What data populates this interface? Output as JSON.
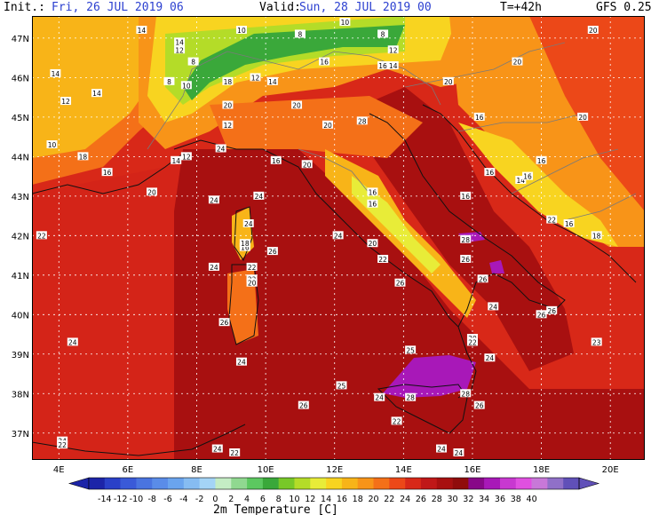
{
  "header": {
    "init_label": "Init.:",
    "init_value": "Fri, 26 JUL 2019 06",
    "valid_label": "Valid:",
    "valid_value": "Sun, 28 JUL 2019 00",
    "lead_time": "T=+42h",
    "model": "GFS 0.25"
  },
  "axes": {
    "lat_labels": [
      "47N",
      "46N",
      "45N",
      "44N",
      "43N",
      "42N",
      "41N",
      "40N",
      "39N",
      "38N",
      "37N"
    ],
    "lat_values": [
      47,
      46,
      45,
      44,
      43,
      42,
      41,
      40,
      39,
      38,
      37
    ],
    "lon_labels": [
      "4E",
      "6E",
      "8E",
      "10E",
      "12E",
      "14E",
      "16E",
      "18E",
      "20E"
    ],
    "lon_values": [
      4,
      6,
      8,
      10,
      12,
      14,
      16,
      18,
      20
    ]
  },
  "colorbar": {
    "title": "2m Temperature [C]",
    "tick_labels": [
      "-14",
      "-12",
      "-10",
      "-8",
      "-6",
      "-4",
      "-2",
      "0",
      "2",
      "4",
      "6",
      "8",
      "10",
      "12",
      "14",
      "16",
      "18",
      "20",
      "22",
      "24",
      "26",
      "28",
      "30",
      "32",
      "34",
      "36",
      "38",
      "40"
    ],
    "colors": [
      "#1c24a8",
      "#2a40c8",
      "#3a5ad8",
      "#4a74e0",
      "#5a8ce8",
      "#6aa4ee",
      "#86bcf2",
      "#a4d4f6",
      "#c4ecc4",
      "#90d890",
      "#5cc860",
      "#3aa83a",
      "#78c828",
      "#b4dc28",
      "#e8ec38",
      "#f8d420",
      "#f8b418",
      "#f89418",
      "#f47018",
      "#ec4818",
      "#d82818",
      "#c01818",
      "#a81010",
      "#900c0c",
      "#880888",
      "#a818b8",
      "#c838d0",
      "#e050e0",
      "#c878d8",
      "#9070c8",
      "#6050b8"
    ]
  },
  "map_labels": [
    {
      "text": "14",
      "lon": 6.4,
      "lat": 47.2
    },
    {
      "text": "10",
      "lon": 9.3,
      "lat": 47.2
    },
    {
      "text": "8",
      "lon": 11.0,
      "lat": 47.1
    },
    {
      "text": "10",
      "lon": 12.3,
      "lat": 47.4
    },
    {
      "text": "8",
      "lon": 13.4,
      "lat": 47.1
    },
    {
      "text": "20",
      "lon": 19.5,
      "lat": 47.2
    },
    {
      "text": "14",
      "lon": 7.5,
      "lat": 46.9
    },
    {
      "text": "12",
      "lon": 7.5,
      "lat": 46.7
    },
    {
      "text": "12",
      "lon": 13.7,
      "lat": 46.7
    },
    {
      "text": "14",
      "lon": 3.9,
      "lat": 46.1
    },
    {
      "text": "8",
      "lon": 7.9,
      "lat": 46.4
    },
    {
      "text": "16",
      "lon": 11.7,
      "lat": 46.4
    },
    {
      "text": "16",
      "lon": 13.4,
      "lat": 46.3
    },
    {
      "text": "14",
      "lon": 13.7,
      "lat": 46.3
    },
    {
      "text": "20",
      "lon": 17.3,
      "lat": 46.4
    },
    {
      "text": "8",
      "lon": 7.2,
      "lat": 45.9
    },
    {
      "text": "10",
      "lon": 7.7,
      "lat": 45.8
    },
    {
      "text": "18",
      "lon": 8.9,
      "lat": 45.9
    },
    {
      "text": "12",
      "lon": 9.7,
      "lat": 46.0
    },
    {
      "text": "14",
      "lon": 10.2,
      "lat": 45.9
    },
    {
      "text": "20",
      "lon": 15.3,
      "lat": 45.9
    },
    {
      "text": "14",
      "lon": 5.1,
      "lat": 45.6
    },
    {
      "text": "12",
      "lon": 4.2,
      "lat": 45.4
    },
    {
      "text": "20",
      "lon": 8.9,
      "lat": 45.3
    },
    {
      "text": "20",
      "lon": 10.9,
      "lat": 45.3
    },
    {
      "text": "20",
      "lon": 19.2,
      "lat": 45.0
    },
    {
      "text": "16",
      "lon": 16.2,
      "lat": 45.0
    },
    {
      "text": "12",
      "lon": 8.9,
      "lat": 44.8
    },
    {
      "text": "20",
      "lon": 11.8,
      "lat": 44.8
    },
    {
      "text": "28",
      "lon": 12.8,
      "lat": 44.9
    },
    {
      "text": "10",
      "lon": 3.8,
      "lat": 44.3
    },
    {
      "text": "18",
      "lon": 4.7,
      "lat": 44.0
    },
    {
      "text": "14",
      "lon": 7.4,
      "lat": 43.9
    },
    {
      "text": "12",
      "lon": 7.7,
      "lat": 44.0
    },
    {
      "text": "24",
      "lon": 8.7,
      "lat": 44.2
    },
    {
      "text": "16",
      "lon": 10.3,
      "lat": 43.9
    },
    {
      "text": "20",
      "lon": 11.2,
      "lat": 43.8
    },
    {
      "text": "16",
      "lon": 18.0,
      "lat": 43.9
    },
    {
      "text": "16",
      "lon": 16.5,
      "lat": 43.6
    },
    {
      "text": "14",
      "lon": 17.4,
      "lat": 43.4
    },
    {
      "text": "16",
      "lon": 17.6,
      "lat": 43.5
    },
    {
      "text": "16",
      "lon": 5.4,
      "lat": 43.6
    },
    {
      "text": "20",
      "lon": 6.7,
      "lat": 43.1
    },
    {
      "text": "24",
      "lon": 8.5,
      "lat": 42.9
    },
    {
      "text": "24",
      "lon": 9.8,
      "lat": 43.0
    },
    {
      "text": "16",
      "lon": 13.1,
      "lat": 43.1
    },
    {
      "text": "16",
      "lon": 15.8,
      "lat": 43.0
    },
    {
      "text": "16",
      "lon": 13.1,
      "lat": 42.8
    },
    {
      "text": "22",
      "lon": 18.3,
      "lat": 42.4
    },
    {
      "text": "16",
      "lon": 18.8,
      "lat": 42.3
    },
    {
      "text": "18",
      "lon": 19.6,
      "lat": 42.0
    },
    {
      "text": "22",
      "lon": 3.5,
      "lat": 42.0
    },
    {
      "text": "24",
      "lon": 9.5,
      "lat": 42.3
    },
    {
      "text": "24",
      "lon": 12.1,
      "lat": 42.0
    },
    {
      "text": "28",
      "lon": 15.8,
      "lat": 41.9
    },
    {
      "text": "16",
      "lon": 9.4,
      "lat": 41.7
    },
    {
      "text": "18",
      "lon": 9.4,
      "lat": 41.8
    },
    {
      "text": "20",
      "lon": 13.1,
      "lat": 41.8
    },
    {
      "text": "26",
      "lon": 10.2,
      "lat": 41.6
    },
    {
      "text": "22",
      "lon": 13.4,
      "lat": 41.4
    },
    {
      "text": "26",
      "lon": 15.8,
      "lat": 41.4
    },
    {
      "text": "24",
      "lon": 8.5,
      "lat": 41.2
    },
    {
      "text": "22",
      "lon": 9.6,
      "lat": 41.2
    },
    {
      "text": "22",
      "lon": 9.6,
      "lat": 40.9
    },
    {
      "text": "20",
      "lon": 9.6,
      "lat": 40.8
    },
    {
      "text": "26",
      "lon": 13.9,
      "lat": 40.8
    },
    {
      "text": "26",
      "lon": 16.3,
      "lat": 40.9
    },
    {
      "text": "24",
      "lon": 16.6,
      "lat": 40.2
    },
    {
      "text": "26",
      "lon": 18.0,
      "lat": 40.0
    },
    {
      "text": "26",
      "lon": 18.3,
      "lat": 40.1
    },
    {
      "text": "26",
      "lon": 8.8,
      "lat": 39.8
    },
    {
      "text": "20",
      "lon": 16.0,
      "lat": 39.4
    },
    {
      "text": "22",
      "lon": 16.0,
      "lat": 39.3
    },
    {
      "text": "24",
      "lon": 4.4,
      "lat": 39.3
    },
    {
      "text": "23",
      "lon": 19.6,
      "lat": 39.3
    },
    {
      "text": "25",
      "lon": 14.2,
      "lat": 39.1
    },
    {
      "text": "24",
      "lon": 9.3,
      "lat": 38.8
    },
    {
      "text": "24",
      "lon": 16.5,
      "lat": 38.9
    },
    {
      "text": "25",
      "lon": 12.2,
      "lat": 38.2
    },
    {
      "text": "24",
      "lon": 13.3,
      "lat": 37.9
    },
    {
      "text": "28",
      "lon": 14.2,
      "lat": 37.9
    },
    {
      "text": "28",
      "lon": 15.8,
      "lat": 38.0
    },
    {
      "text": "26",
      "lon": 16.2,
      "lat": 37.7
    },
    {
      "text": "26",
      "lon": 11.1,
      "lat": 37.7
    },
    {
      "text": "22",
      "lon": 13.8,
      "lat": 37.3
    },
    {
      "text": "24",
      "lon": 4.1,
      "lat": 36.8
    },
    {
      "text": "22",
      "lon": 4.1,
      "lat": 36.7
    },
    {
      "text": "24",
      "lon": 8.6,
      "lat": 36.6
    },
    {
      "text": "24",
      "lon": 15.1,
      "lat": 36.6
    },
    {
      "text": "24",
      "lon": 15.6,
      "lat": 36.5
    },
    {
      "text": "22",
      "lon": 9.1,
      "lat": 36.5
    }
  ]
}
